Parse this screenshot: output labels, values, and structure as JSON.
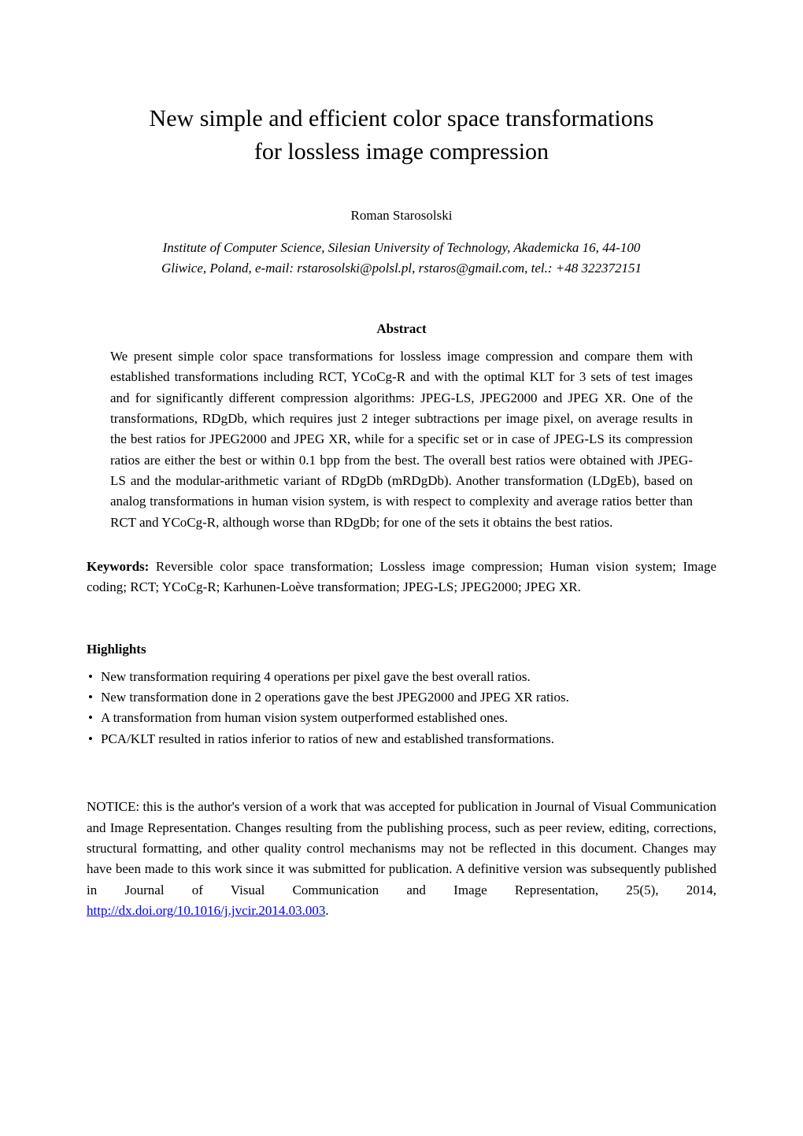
{
  "title_line1": "New simple and efficient color space transformations",
  "title_line2": "for lossless image compression",
  "author": "Roman Starosolski",
  "affiliation_line1": "Institute of Computer Science, Silesian University of Technology, Akademicka 16, 44-100",
  "affiliation_line2": "Gliwice, Poland, e-mail: rstarosolski@polsl.pl, rstaros@gmail.com, tel.: +48 322372151",
  "abstract_heading": "Abstract",
  "abstract_body": "We present simple color space transformations for lossless image compression and compare them with established transformations including RCT, YCoCg-R and with the optimal KLT for 3 sets of test images and for significantly different compression algorithms: JPEG-LS, JPEG2000 and JPEG XR. One of the transformations, RDgDb, which requires just 2 integer subtractions per image pixel, on average results in the best ratios for JPEG2000 and JPEG XR, while for a specific set or in case of JPEG-LS its compression ratios are either the best or within 0.1 bpp from the best. The overall best ratios were obtained with JPEG-LS and the modular-arithmetic variant of RDgDb (mRDgDb). Another transformation (LDgEb), based on analog transformations in human vision system, is with respect to complexity and average ratios better than RCT and YCoCg-R, although worse than RDgDb; for one of the sets it obtains the best ratios.",
  "keywords_label": "Keywords:",
  "keywords_text": " Reversible color space transformation; Lossless image compression; Human vision system; Image coding; RCT; YCoCg-R; Karhunen-Loève transformation; JPEG-LS; JPEG2000; JPEG XR.",
  "highlights_heading": "Highlights",
  "highlights": [
    "New transformation requiring 4 operations per pixel gave the best overall ratios.",
    "New transformation done in 2 operations gave the best JPEG2000 and JPEG XR ratios.",
    "A transformation from human vision system outperformed established ones.",
    "PCA/KLT resulted in ratios inferior to ratios of new and established transformations."
  ],
  "notice_prefix": "NOTICE: this is the author's version of a work that was accepted for publication in Journal of Visual Communication and Image Representation. Changes resulting from the publishing process, such as peer review, editing, corrections, structural formatting, and other quality control mechanisms may not be reflected in this document. Changes may have been made to this work since it was submitted for publication. A definitive version was subsequently published in Journal of Visual Communication and Image Representation, 25(5), 2014, ",
  "doi_link_text": "http://dx.doi.org/10.1016/j.jvcir.2014.03.003",
  "notice_suffix": ".",
  "colors": {
    "background": "#ffffff",
    "text": "#000000",
    "link": "#0000ee"
  },
  "typography": {
    "font_family": "Times New Roman",
    "title_fontsize": 30,
    "body_fontsize": 17,
    "line_height": 1.55
  }
}
